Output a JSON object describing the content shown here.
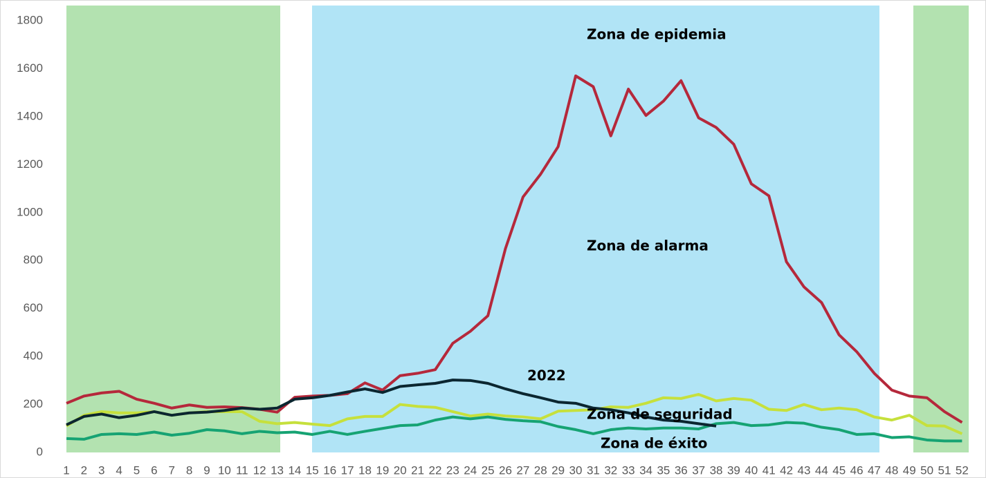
{
  "chart_data": {
    "type": "line",
    "categories": [
      "1",
      "2",
      "3",
      "4",
      "5",
      "6",
      "7",
      "8",
      "9",
      "10",
      "11",
      "12",
      "13",
      "14",
      "15",
      "16",
      "17",
      "18",
      "19",
      "20",
      "21",
      "22",
      "23",
      "24",
      "25",
      "26",
      "27",
      "28",
      "29",
      "30",
      "31",
      "32",
      "33",
      "34",
      "35",
      "36",
      "37",
      "38",
      "39",
      "40",
      "41",
      "42",
      "43",
      "44",
      "45",
      "46",
      "47",
      "48",
      "49",
      "50",
      "51",
      "52"
    ],
    "series": [
      {
        "color": "#b5283b",
        "values": [
          205,
          235,
          248,
          255,
          222,
          205,
          185,
          198,
          188,
          190,
          187,
          180,
          168,
          230,
          235,
          238,
          245,
          290,
          260,
          320,
          330,
          345,
          455,
          505,
          570,
          850,
          1065,
          1160,
          1275,
          1570,
          1525,
          1320,
          1515,
          1405,
          1465,
          1550,
          1395,
          1355,
          1285,
          1120,
          1070,
          795,
          690,
          625,
          490,
          420,
          330,
          260,
          235,
          228,
          170,
          125
        ]
      },
      {
        "color": "#c6e03c",
        "values": [
          110,
          155,
          170,
          165,
          165,
          170,
          155,
          165,
          170,
          170,
          170,
          130,
          120,
          125,
          118,
          112,
          140,
          150,
          150,
          200,
          192,
          188,
          170,
          152,
          160,
          152,
          148,
          140,
          172,
          175,
          178,
          190,
          188,
          205,
          228,
          225,
          242,
          215,
          225,
          218,
          180,
          175,
          200,
          178,
          185,
          178,
          148,
          135,
          155,
          112,
          110,
          78
        ]
      },
      {
        "color": "#16a373",
        "values": [
          58,
          55,
          75,
          78,
          75,
          85,
          72,
          80,
          95,
          90,
          78,
          88,
          82,
          85,
          75,
          88,
          75,
          88,
          100,
          112,
          115,
          135,
          148,
          140,
          148,
          138,
          132,
          128,
          108,
          95,
          78,
          95,
          102,
          98,
          102,
          102,
          98,
          120,
          125,
          112,
          115,
          125,
          122,
          105,
          95,
          75,
          78,
          62,
          65,
          52,
          48,
          48
        ]
      },
      {
        "color": "#0b2630",
        "values": [
          115,
          150,
          160,
          145,
          155,
          170,
          155,
          165,
          168,
          175,
          185,
          180,
          185,
          222,
          228,
          238,
          252,
          265,
          250,
          275,
          282,
          288,
          302,
          300,
          288,
          265,
          245,
          228,
          210,
          205,
          185,
          178,
          165,
          148,
          135,
          130,
          120,
          110,
          null,
          null,
          null,
          null,
          null,
          null,
          null,
          null,
          null,
          null,
          null,
          null,
          null,
          null
        ]
      }
    ],
    "annotations": [
      "Zona de epidemia",
      "Zona de alarma",
      "2022",
      "Zona de seguridad",
      "Zona de éxito"
    ],
    "ylim": [
      0,
      1800
    ],
    "yticks": [
      0,
      200,
      400,
      600,
      800,
      1000,
      1200,
      1400,
      1600,
      1800
    ],
    "grid": false
  }
}
